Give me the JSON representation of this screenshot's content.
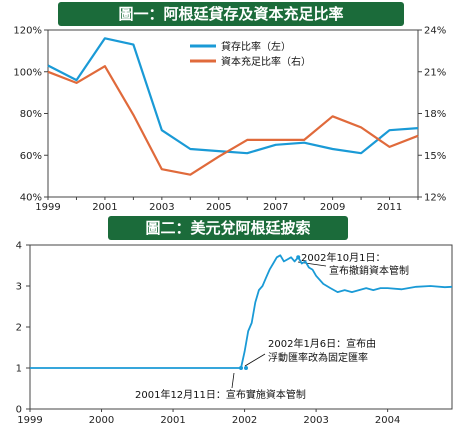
{
  "chart_data": [
    {
      "type": "line",
      "title": "圖一：阿根廷貸存及資本充足比率",
      "x": [
        1999,
        2000,
        2001,
        2002,
        2003,
        2004,
        2005,
        2006,
        2007,
        2008,
        2009,
        2010,
        2011,
        2012
      ],
      "x_ticks": [
        "1999",
        "2001",
        "2003",
        "2005",
        "2007",
        "2009",
        "2011"
      ],
      "y_left_ticks": [
        "40%",
        "60%",
        "80%",
        "100%",
        "120%"
      ],
      "y_right_ticks": [
        "12%",
        "15%",
        "18%",
        "21%",
        "24%"
      ],
      "ylim_left": [
        40,
        120
      ],
      "ylim_right": [
        12,
        24
      ],
      "series": [
        {
          "name": "貸存比率（左）",
          "axis": "left",
          "color": "#1a9ad6",
          "values": [
            103,
            96,
            116,
            113,
            72,
            63,
            62,
            61,
            65,
            66,
            63,
            61,
            72,
            73
          ]
        },
        {
          "name": "資本充足比率（右）",
          "axis": "right",
          "color": "#e06a3b",
          "values": [
            21.0,
            20.2,
            21.4,
            17.9,
            14.0,
            13.6,
            14.9,
            16.1,
            16.1,
            16.1,
            17.8,
            17.0,
            15.6,
            16.4
          ]
        }
      ],
      "grid": false,
      "legend": "top-center"
    },
    {
      "type": "line",
      "title": "圖二：美元兌阿根廷披索",
      "x_ticks": [
        "1999",
        "2000",
        "2001",
        "2002",
        "2003",
        "2004"
      ],
      "y_ticks": [
        "0",
        "1",
        "2",
        "3",
        "4"
      ],
      "ylim": [
        0,
        4
      ],
      "xlim": [
        1999.0,
        2004.9
      ],
      "series": [
        {
          "color": "#1a9ad6",
          "points": [
            [
              1999.0,
              1.0
            ],
            [
              2001.95,
              1.0
            ],
            [
              2002.0,
              1.4
            ],
            [
              2002.05,
              1.9
            ],
            [
              2002.1,
              2.1
            ],
            [
              2002.15,
              2.6
            ],
            [
              2002.2,
              2.9
            ],
            [
              2002.25,
              3.0
            ],
            [
              2002.3,
              3.2
            ],
            [
              2002.35,
              3.4
            ],
            [
              2002.4,
              3.55
            ],
            [
              2002.45,
              3.7
            ],
            [
              2002.5,
              3.75
            ],
            [
              2002.55,
              3.6
            ],
            [
              2002.6,
              3.65
            ],
            [
              2002.65,
              3.7
            ],
            [
              2002.7,
              3.6
            ],
            [
              2002.75,
              3.7
            ],
            [
              2002.8,
              3.55
            ],
            [
              2002.85,
              3.6
            ],
            [
              2002.9,
              3.45
            ],
            [
              2002.95,
              3.4
            ],
            [
              2003.0,
              3.25
            ],
            [
              2003.1,
              3.05
            ],
            [
              2003.2,
              2.95
            ],
            [
              2003.3,
              2.85
            ],
            [
              2003.4,
              2.9
            ],
            [
              2003.5,
              2.85
            ],
            [
              2003.6,
              2.9
            ],
            [
              2003.7,
              2.95
            ],
            [
              2003.8,
              2.9
            ],
            [
              2003.9,
              2.95
            ],
            [
              2004.0,
              2.95
            ],
            [
              2004.2,
              2.92
            ],
            [
              2004.4,
              2.98
            ],
            [
              2004.6,
              3.0
            ],
            [
              2004.8,
              2.97
            ],
            [
              2004.9,
              2.98
            ]
          ]
        }
      ],
      "annotations": [
        {
          "text": "2002年10月1日：",
          "x": 2002.75,
          "y": 3.7
        },
        {
          "text": "宣布撤銷資本管制",
          "x": 2002.75,
          "y": 3.7
        },
        {
          "text": "2002年1月6日：宣布由",
          "x": 2002.02,
          "y": 1.0
        },
        {
          "text": "浮動匯率改為固定匯率",
          "x": 2002.02,
          "y": 1.0
        },
        {
          "text": "2001年12月11日：宣布實施資本管制",
          "x": 2001.95,
          "y": 1.0
        }
      ],
      "grid": false,
      "legend": "none"
    }
  ]
}
